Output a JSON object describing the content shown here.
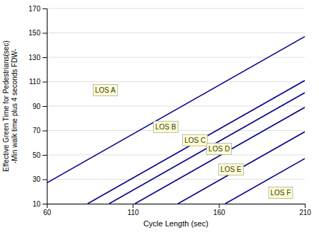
{
  "chart_data": {
    "type": "line",
    "xlabel": "Cycle Length (sec)",
    "ylabel": "Effective Green Time for Pedestrians(sec)\n-Min walk time plus 4 seconds FDW-",
    "color": "#00008B",
    "xlim": [
      60,
      210
    ],
    "xticks": [
      60,
      110,
      160,
      210
    ],
    "ylim": [
      10,
      170
    ],
    "yticks": [
      10,
      30,
      50,
      70,
      90,
      110,
      130,
      150,
      170
    ],
    "grid": "y",
    "series": [
      {
        "x": [
          60,
          210
        ],
        "values": [
          27,
          147
        ]
      },
      {
        "x": [
          83.75,
          210
        ],
        "values": [
          10,
          111
        ]
      },
      {
        "x": [
          96.25,
          210
        ],
        "values": [
          10,
          101
        ]
      },
      {
        "x": [
          111.25,
          210
        ],
        "values": [
          10,
          89
        ]
      },
      {
        "x": [
          136.25,
          210
        ],
        "values": [
          10,
          69
        ]
      },
      {
        "x": [
          163.75,
          210
        ],
        "values": [
          10,
          47
        ]
      }
    ],
    "annotations": [
      {
        "text": "LOS A",
        "x": 88,
        "y": 103
      },
      {
        "text": "LOS B",
        "x": 123,
        "y": 73
      },
      {
        "text": "LOS C",
        "x": 140,
        "y": 62
      },
      {
        "text": "LOS D",
        "x": 154,
        "y": 55
      },
      {
        "text": "LOS E",
        "x": 161,
        "y": 38
      },
      {
        "text": "LOS F",
        "x": 190,
        "y": 19
      }
    ]
  }
}
